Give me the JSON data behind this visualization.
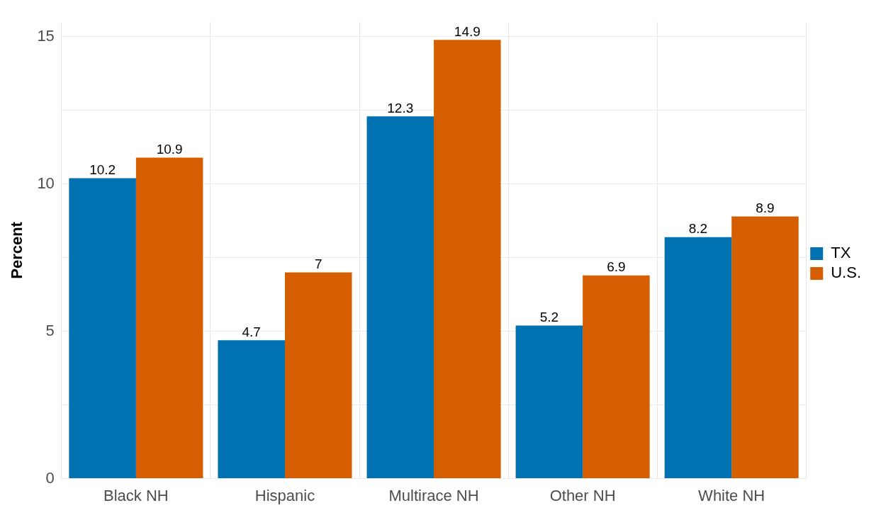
{
  "chart_data": {
    "type": "bar",
    "categories": [
      "Black NH",
      "Hispanic",
      "Multirace NH",
      "Other NH",
      "White NH"
    ],
    "series": [
      {
        "name": "TX",
        "color": "#0072b2",
        "values": [
          10.2,
          4.7,
          12.3,
          5.2,
          8.2
        ]
      },
      {
        "name": "U.S.",
        "color": "#d55e00",
        "values": [
          10.9,
          7,
          14.9,
          6.9,
          8.9
        ]
      }
    ],
    "ylabel": "Percent",
    "ylim": [
      0,
      15.5
    ],
    "yticks": [
      0,
      {
        "value": 2.5,
        "label": null
      },
      5,
      {
        "value": 7.5,
        "label": null
      },
      10,
      {
        "value": 12.5,
        "label": null
      },
      15
    ],
    "grid": true,
    "legend": "right",
    "data_labels": true
  }
}
